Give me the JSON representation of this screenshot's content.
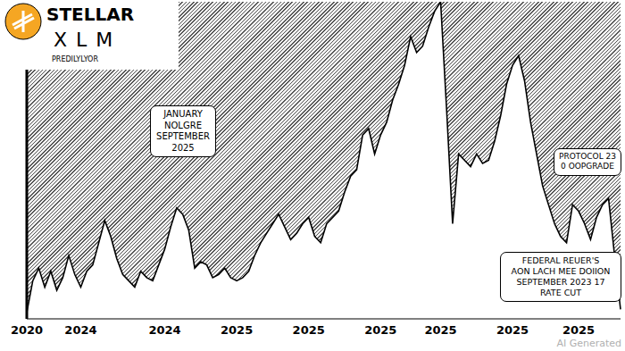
{
  "chart_data": {
    "type": "area",
    "title": "STELLAR",
    "subtitle": "XLM",
    "tagline": "PREDILYLYOR",
    "watermark": "AI Generated",
    "color": "#000000",
    "grid": false,
    "tick_labels": "x",
    "ylim": [
      0,
      100
    ],
    "categories": [
      "2020",
      null,
      null,
      null,
      null,
      null,
      null,
      null,
      null,
      "2024",
      null,
      null,
      null,
      null,
      null,
      null,
      null,
      null,
      null,
      null,
      null,
      null,
      null,
      "2024",
      null,
      null,
      null,
      null,
      null,
      null,
      null,
      null,
      null,
      null,
      null,
      "2025",
      null,
      null,
      null,
      null,
      null,
      null,
      null,
      null,
      null,
      null,
      null,
      "2025",
      null,
      null,
      null,
      null,
      null,
      null,
      null,
      null,
      null,
      null,
      null,
      "2025",
      null,
      null,
      null,
      null,
      null,
      null,
      null,
      null,
      null,
      "2025",
      null,
      null,
      null,
      null,
      null,
      null,
      null,
      null,
      null,
      null,
      null,
      "2025",
      null,
      null,
      null,
      null,
      null,
      null,
      null,
      null,
      null,
      null,
      "2025",
      null,
      null,
      null,
      null,
      null,
      null,
      null
    ],
    "values": [
      2,
      12,
      16,
      10,
      15,
      9,
      13,
      20,
      14,
      10,
      15,
      17,
      24,
      31,
      26,
      19,
      14,
      12,
      10,
      15,
      13,
      12,
      17,
      22,
      29,
      35,
      33,
      28,
      16,
      18,
      17,
      13,
      14,
      16,
      13,
      12,
      13,
      15,
      20,
      24,
      27,
      30,
      33,
      29,
      25,
      27,
      30,
      32,
      26,
      24,
      30,
      32,
      34,
      40,
      45,
      47,
      58,
      60,
      52,
      58,
      62,
      69,
      74,
      80,
      89,
      84,
      86,
      92,
      97,
      100,
      66,
      30,
      52,
      50,
      48,
      52,
      49,
      50,
      56,
      64,
      74,
      80,
      83,
      75,
      62,
      52,
      42,
      36,
      30,
      26,
      24,
      36,
      34,
      30,
      25,
      32,
      36,
      38,
      20,
      3
    ],
    "annotations": [
      {
        "lines": [
          "JANUARY",
          "NOLGRE",
          "SEPTEMBER",
          "2025"
        ]
      },
      {
        "lines": [
          "PROTOCOL 23",
          "0 OOPGRADE"
        ]
      },
      {
        "lines": [
          "FEDERAL REUER'S",
          "AON LACH MEE DOIION",
          "SEPTEMBER 2023 17",
          "RATE CUT"
        ]
      }
    ]
  }
}
